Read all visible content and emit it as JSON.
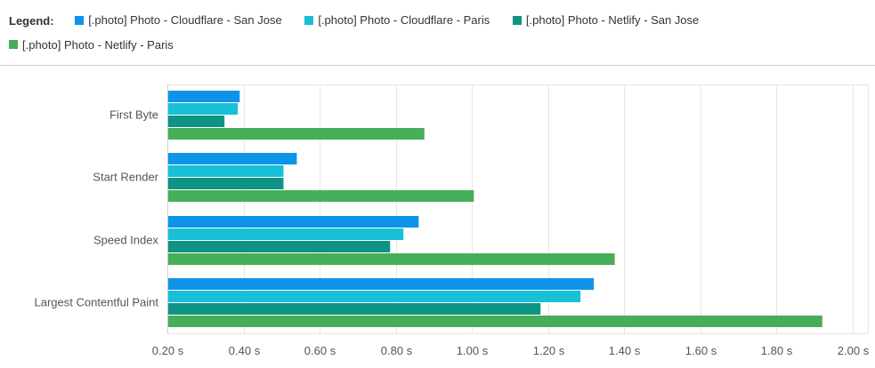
{
  "legend": {
    "title": "Legend:"
  },
  "colors": {
    "cloudflare_san_jose": "#0d94e8",
    "cloudflare_paris": "#17c0d6",
    "netlify_san_jose": "#0f9385",
    "netlify_paris": "#46ae58",
    "grid": "#e6e6e6"
  },
  "chart_data": {
    "type": "bar",
    "orientation": "horizontal",
    "categories": [
      "First Byte",
      "Start Render",
      "Speed Index",
      "Largest Contentful Paint"
    ],
    "series": [
      {
        "name": "[.photo] Photo - Cloudflare - San Jose",
        "values": [
          0.39,
          0.54,
          0.86,
          1.32
        ]
      },
      {
        "name": "[.photo] Photo - Cloudflare - Paris",
        "values": [
          0.385,
          0.505,
          0.82,
          1.285
        ]
      },
      {
        "name": "[.photo] Photo - Netlify - San Jose",
        "values": [
          0.35,
          0.505,
          0.785,
          1.18
        ]
      },
      {
        "name": "[.photo] Photo - Netlify - Paris",
        "values": [
          0.875,
          1.005,
          1.375,
          1.92
        ]
      }
    ],
    "xlim": [
      0.2,
      2.0
    ],
    "x_ticks": [
      "0.20 s",
      "0.40 s",
      "0.60 s",
      "0.80 s",
      "1.00 s",
      "1.20 s",
      "1.40 s",
      "1.60 s",
      "1.80 s",
      "2.00 s"
    ],
    "x_tick_values": [
      0.2,
      0.4,
      0.6,
      0.8,
      1.0,
      1.2,
      1.4,
      1.6,
      1.8,
      2.0
    ],
    "grid": true,
    "legend_position": "top"
  }
}
